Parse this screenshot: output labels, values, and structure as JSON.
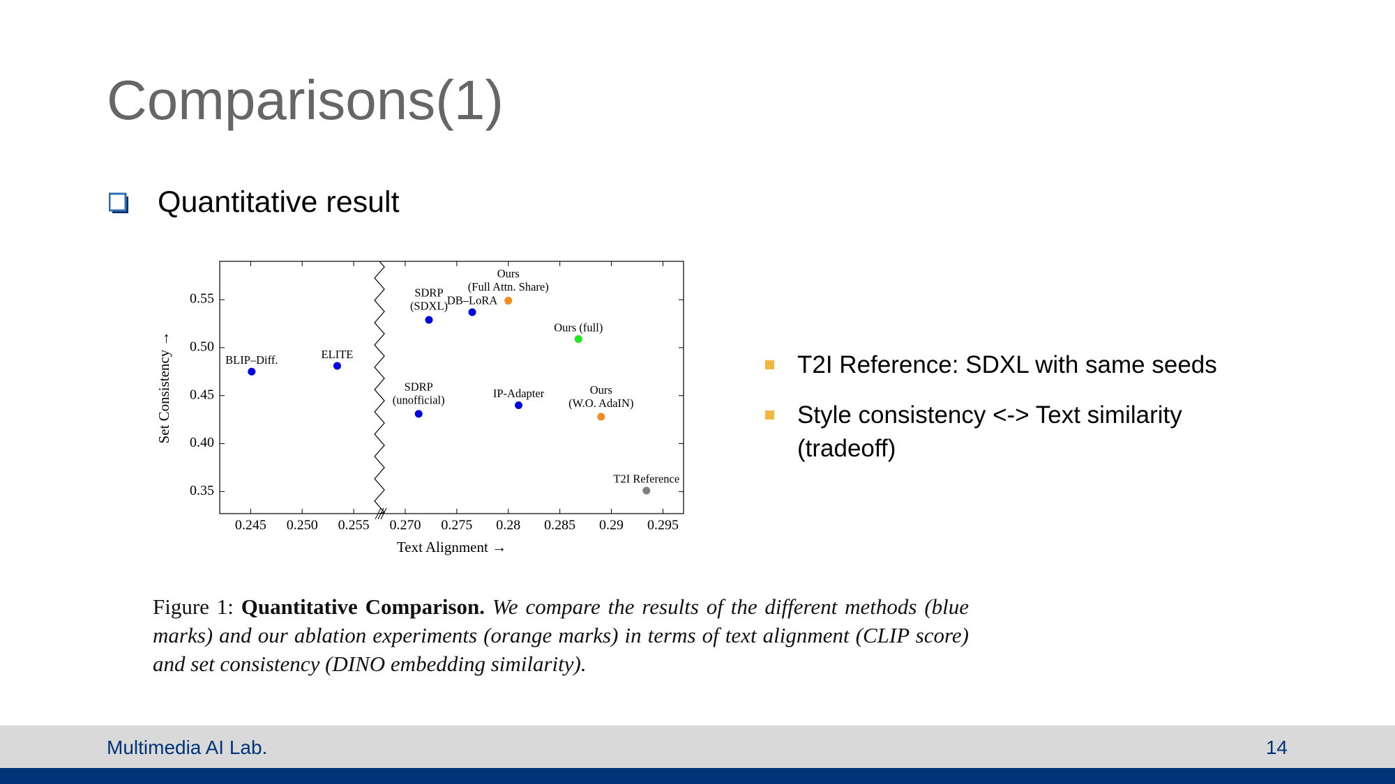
{
  "slide": {
    "title": "Comparisons(1)",
    "heading": "Quantitative result",
    "bullets": [
      "T2I Reference: SDXL with same seeds",
      "Style consistency <-> Text similarity (tradeoff)"
    ],
    "caption": {
      "label": "Figure 1:",
      "bold": "Quantitative Comparison.",
      "text": "We compare the results of the different methods (blue marks) and our ablation experiments (orange marks) in terms of text alignment (CLIP score) and set consistency (DINO embedding similarity)."
    },
    "footer": {
      "lab": "Multimedia AI Lab.",
      "page": "14"
    }
  },
  "chart_data": {
    "type": "scatter",
    "x_label": "Text Alignment →",
    "y_label": "Set Consistency →",
    "xlim": [
      0.242,
      0.297
    ],
    "x_break": [
      0.2575,
      0.2675
    ],
    "ylim": [
      0.327,
      0.59
    ],
    "xticks": [
      0.245,
      {
        "value": 0.25,
        "label": "0.250"
      },
      0.255,
      {
        "value": 0.27,
        "label": "0.270"
      },
      0.275,
      0.28,
      0.285,
      0.29,
      0.295
    ],
    "yticks": [
      0.35,
      {
        "value": 0.4,
        "label": "0.40"
      },
      0.45,
      {
        "value": 0.5,
        "label": "0.50"
      },
      0.55
    ],
    "points": [
      {
        "label_lines": [
          "BLIP–Diff."
        ],
        "x": 0.2451,
        "y": 0.475,
        "color": "#0000e0"
      },
      {
        "label_lines": [
          "ELITE"
        ],
        "x": 0.2534,
        "y": 0.481,
        "color": "#0000e0"
      },
      {
        "label_lines": [
          "SDRP",
          "(SDXL)"
        ],
        "x": 0.2723,
        "y": 0.529,
        "color": "#0000e0"
      },
      {
        "label_lines": [
          "DB–LoRA"
        ],
        "x": 0.2765,
        "y": 0.537,
        "color": "#0000e0"
      },
      {
        "label_lines": [
          "Ours",
          "(Full Attn. Share)"
        ],
        "x": 0.28,
        "y": 0.549,
        "color": "#f58a1f"
      },
      {
        "label_lines": [
          "Ours (full)"
        ],
        "x": 0.2868,
        "y": 0.509,
        "color": "#1fe81f"
      },
      {
        "label_lines": [
          "SDRP",
          "(unofficial)"
        ],
        "x": 0.2713,
        "y": 0.431,
        "color": "#0000e0"
      },
      {
        "label_lines": [
          "IP-Adapter"
        ],
        "x": 0.281,
        "y": 0.44,
        "color": "#0000e0"
      },
      {
        "label_lines": [
          "Ours",
          "(W.O. AdaIN)"
        ],
        "x": 0.289,
        "y": 0.428,
        "color": "#f58a1f"
      },
      {
        "label_lines": [
          "T2I Reference"
        ],
        "x": 0.2934,
        "y": 0.351,
        "color": "#808080"
      }
    ]
  }
}
